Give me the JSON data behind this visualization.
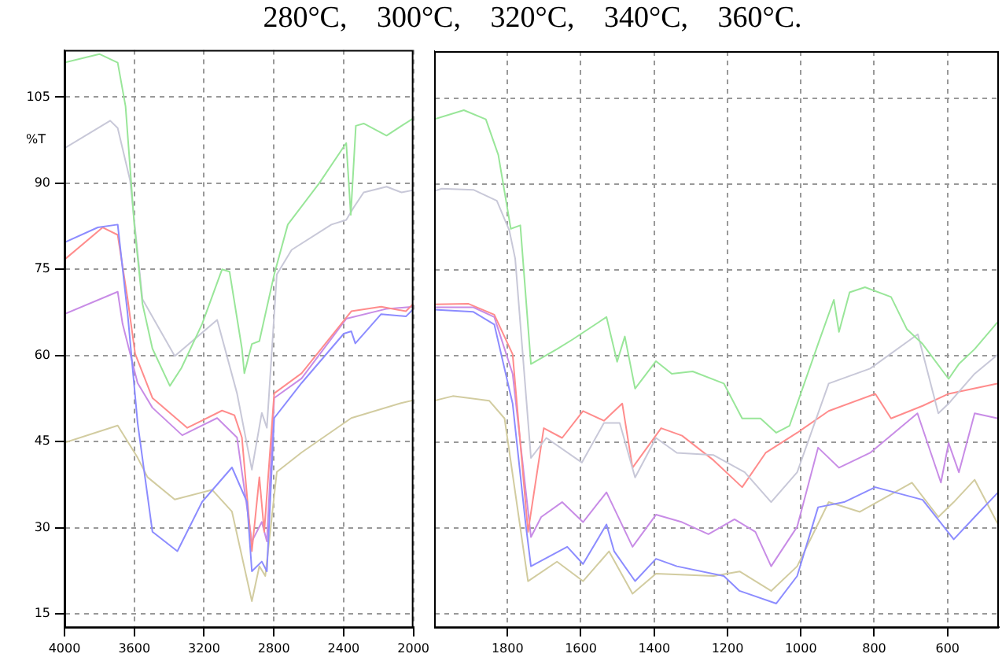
{
  "chart_data": [
    {
      "type": "line",
      "title": "280°C, 300°C, 320°C, 340°C, 360°C.",
      "ylabel": "%T",
      "xlim": [
        4000,
        2000
      ],
      "xticks": [
        4000,
        3600,
        3200,
        2800,
        2400,
        2000
      ],
      "ylim": [
        12.7,
        113.2
      ],
      "yticks": [
        15,
        30,
        45,
        60,
        75,
        90,
        105
      ],
      "grid": true,
      "legend": false,
      "marker": "none",
      "line_style": "solid",
      "series": [
        {
          "color": "#99e699",
          "x": [
            4000,
            3800,
            3695,
            3650,
            3600,
            3553,
            3496,
            3396,
            3330,
            3211,
            3097,
            3054,
            2983,
            2969,
            2926,
            2883,
            2798,
            2720,
            2540,
            2385,
            2359,
            2330,
            2285,
            2154,
            2068,
            2000
          ],
          "values": [
            111,
            112.5,
            111,
            103.4,
            82.8,
            69,
            61.2,
            54.7,
            57.8,
            65.5,
            75,
            74.6,
            61.2,
            56.9,
            62,
            62.5,
            74.1,
            82.8,
            90,
            97,
            84.5,
            100,
            100.4,
            98.3,
            100,
            101.3
          ]
        },
        {
          "color": "#c8c8d8",
          "x": [
            4000,
            3738,
            3695,
            3624,
            3553,
            3368,
            3125,
            3011,
            2926,
            2869,
            2840,
            2783,
            2698,
            2470,
            2385,
            2342,
            2285,
            2154,
            2068,
            2000
          ],
          "values": [
            96.1,
            100.9,
            99.6,
            90.5,
            69.8,
            59.9,
            66.2,
            53.4,
            40.1,
            50,
            47.4,
            74.1,
            78.4,
            82.8,
            83.6,
            85.8,
            88.4,
            89.4,
            88.4,
            88.8
          ]
        },
        {
          "color": "#8c8cff",
          "x": [
            4000,
            3809,
            3695,
            3638,
            3581,
            3496,
            3353,
            3211,
            3040,
            2954,
            2926,
            2869,
            2840,
            2798,
            2641,
            2399,
            2356,
            2333,
            2185,
            2043,
            2000
          ],
          "values": [
            79.7,
            82.3,
            82.8,
            67.2,
            48.3,
            29.3,
            25.9,
            34.5,
            40.5,
            34.5,
            22.4,
            24.1,
            22.4,
            49.1,
            55.2,
            63.8,
            64.2,
            62.1,
            67.2,
            66.8,
            68.1
          ]
        },
        {
          "color": "#ff8c8c",
          "x": [
            4000,
            3781,
            3695,
            3638,
            3595,
            3496,
            3296,
            3097,
            3026,
            2983,
            2926,
            2883,
            2855,
            2798,
            2641,
            2356,
            2185,
            2043,
            2000
          ],
          "values": [
            76.7,
            82.3,
            81,
            69.8,
            60.3,
            52.6,
            47.4,
            50.4,
            49.6,
            45.7,
            25.9,
            38.8,
            29.3,
            53.4,
            56.9,
            67.7,
            68.5,
            67.7,
            69
          ]
        },
        {
          "color": "#c88ce6",
          "x": [
            4000,
            3695,
            3667,
            3581,
            3496,
            3325,
            3125,
            3011,
            2926,
            2869,
            2840,
            2798,
            2641,
            2385,
            2157,
            2000
          ],
          "values": [
            67.2,
            71.1,
            65.5,
            55.2,
            50.9,
            46.1,
            49.1,
            45.7,
            27.6,
            31,
            27.6,
            52.6,
            56,
            66.4,
            68.1,
            68.5
          ]
        },
        {
          "color": "#d2cca0",
          "x": [
            4000,
            3695,
            3581,
            3524,
            3368,
            3154,
            3040,
            2926,
            2883,
            2849,
            2783,
            2641,
            2356,
            2071,
            2000
          ],
          "values": [
            44.8,
            47.8,
            42.2,
            38.8,
            34.9,
            36.6,
            32.8,
            17.2,
            23.3,
            21.6,
            39.7,
            43.1,
            49.1,
            51.7,
            52.2
          ]
        }
      ]
    },
    {
      "type": "line",
      "xlim": [
        2000,
        460
      ],
      "xticks": [
        1800,
        1600,
        1400,
        1200,
        1000,
        800,
        600
      ],
      "ylim": [
        12.7,
        113.2
      ],
      "yticks": [
        15,
        30,
        45,
        60,
        75,
        90,
        105
      ],
      "tick_labels": "x",
      "grid": true,
      "legend": false,
      "marker": "none",
      "line_style": "solid",
      "series": [
        {
          "color": "#99e699",
          "x": [
            2000,
            1919,
            1859,
            1825,
            1791,
            1765,
            1736,
            1665,
            1622,
            1530,
            1501,
            1480,
            1452,
            1395,
            1352,
            1295,
            1210,
            1160,
            1110,
            1067,
            1031,
            953,
            910,
            896,
            867,
            825,
            754,
            711,
            668,
            597,
            569,
            526,
            462
          ],
          "values": [
            101.3,
            102.9,
            101.3,
            95.1,
            82.2,
            82.8,
            58.6,
            61.2,
            62.9,
            66.8,
            59,
            63.4,
            54.3,
            59.1,
            56.9,
            57.3,
            55.2,
            49.1,
            49.1,
            46.6,
            47.8,
            62.1,
            69.8,
            64.2,
            71.1,
            72,
            70.3,
            64.7,
            62.1,
            56,
            58.6,
            61.2,
            66
          ]
        },
        {
          "color": "#c8c8d8",
          "x": [
            2000,
            1979,
            1893,
            1829,
            1795,
            1779,
            1736,
            1694,
            1597,
            1537,
            1494,
            1452,
            1395,
            1338,
            1238,
            1153,
            1081,
            1010,
            924,
            811,
            681,
            625,
            597,
            526,
            462
          ],
          "values": [
            88.8,
            89.2,
            89,
            87.1,
            81.9,
            77,
            42.2,
            45.7,
            41.4,
            48.3,
            48.3,
            38.8,
            45.7,
            43.1,
            42.7,
            39.7,
            34.5,
            39.7,
            55.2,
            57.8,
            63.8,
            50,
            51.7,
            56.9,
            60.3
          ]
        },
        {
          "color": "#8c8cff",
          "x": [
            2000,
            1893,
            1836,
            1786,
            1751,
            1736,
            1637,
            1594,
            1530,
            1509,
            1452,
            1395,
            1338,
            1210,
            1167,
            1067,
            1010,
            953,
            882,
            797,
            668,
            583,
            526,
            462
          ],
          "values": [
            68.1,
            67.7,
            65.5,
            51.7,
            31,
            23.3,
            26.7,
            23.7,
            30.6,
            25.9,
            20.7,
            24.6,
            23.3,
            21.6,
            19,
            16.8,
            21.6,
            33.6,
            34.5,
            37.1,
            34.9,
            28,
            31.9,
            36.2
          ]
        },
        {
          "color": "#ff8c8c",
          "x": [
            2000,
            1906,
            1836,
            1786,
            1744,
            1701,
            1651,
            1594,
            1537,
            1487,
            1459,
            1381,
            1324,
            1238,
            1160,
            1096,
            1010,
            924,
            797,
            754,
            668,
            597,
            462
          ],
          "values": [
            69,
            69.1,
            67.2,
            60.3,
            29.3,
            47.4,
            45.7,
            50.4,
            48.7,
            51.7,
            40.5,
            47.4,
            46.1,
            41.8,
            37.1,
            43.1,
            46.6,
            50.4,
            53.4,
            49.1,
            51.3,
            53.4,
            55.2
          ]
        },
        {
          "color": "#c88ce6",
          "x": [
            2000,
            1893,
            1836,
            1786,
            1736,
            1708,
            1651,
            1594,
            1530,
            1459,
            1395,
            1324,
            1252,
            1181,
            1124,
            1081,
            1010,
            953,
            896,
            811,
            682,
            618,
            597,
            569,
            526,
            462
          ],
          "values": [
            68.5,
            68.5,
            66.8,
            56.9,
            28.4,
            31.9,
            34.5,
            31,
            36.2,
            26.7,
            32.3,
            31,
            28.9,
            31.5,
            29.3,
            23.3,
            30.2,
            44,
            40.5,
            43.1,
            50,
            37.9,
            44.8,
            39.7,
            50,
            49.1
          ]
        },
        {
          "color": "#d2cca0",
          "x": [
            2000,
            1949,
            1850,
            1808,
            1744,
            1665,
            1594,
            1523,
            1459,
            1395,
            1238,
            1167,
            1081,
            1010,
            924,
            839,
            697,
            625,
            583,
            526,
            462
          ],
          "values": [
            52.2,
            53,
            52.2,
            49.1,
            20.7,
            24.1,
            20.7,
            25.9,
            18.5,
            22,
            21.6,
            22.4,
            19,
            23.3,
            34.5,
            32.8,
            37.9,
            31.9,
            34.5,
            38.4,
            30.6
          ]
        }
      ]
    }
  ]
}
